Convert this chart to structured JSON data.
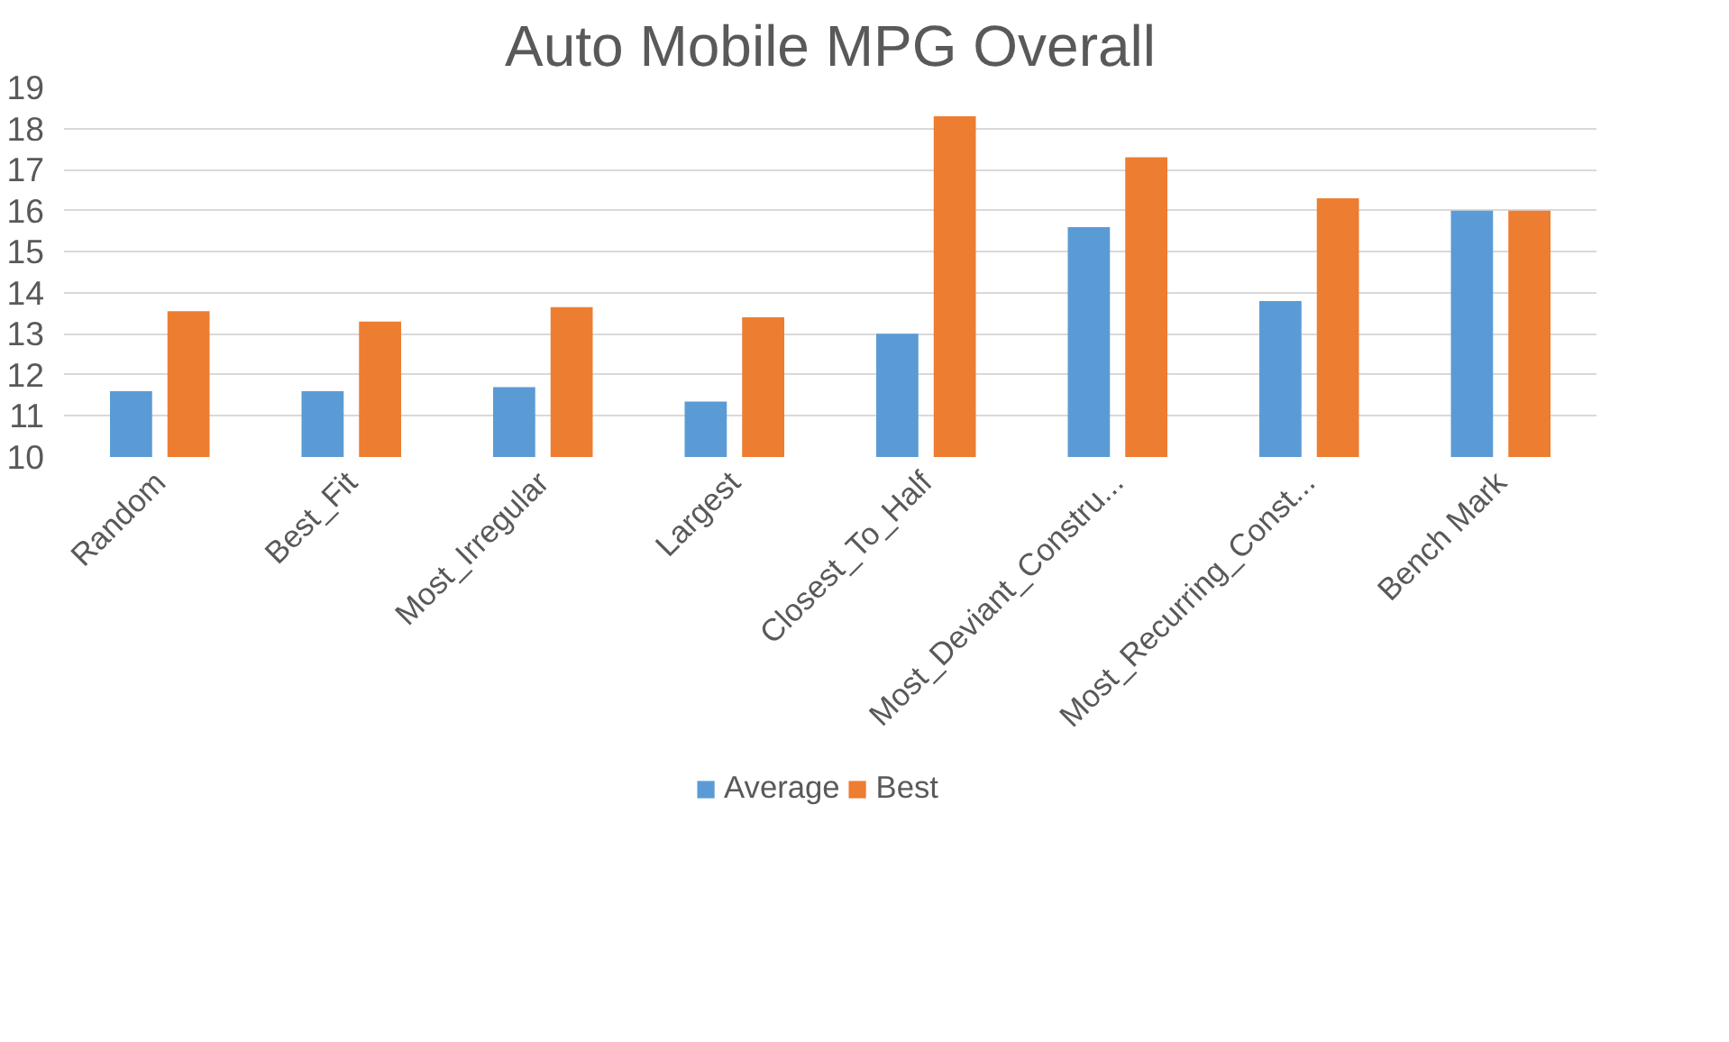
{
  "chart_data": {
    "type": "bar",
    "title": "Auto Mobile MPG Overall",
    "categories": [
      "Random",
      "Best_Fit",
      "Most_Irregular",
      "Largest",
      "Closest_To_Half",
      "Most_Deviant_Constru...",
      "Most_Recurring_Const...",
      "Bench Mark"
    ],
    "series": [
      {
        "name": "Average",
        "color": "#5b9bd5",
        "values": [
          11.6,
          11.6,
          11.7,
          11.35,
          13.0,
          15.6,
          13.8,
          16.0
        ]
      },
      {
        "name": "Best",
        "color": "#ed7d31",
        "values": [
          13.55,
          13.3,
          13.65,
          13.4,
          18.3,
          17.3,
          16.3,
          16.0
        ]
      }
    ],
    "ylim": [
      10,
      19
    ],
    "yticks": [
      10,
      11,
      12,
      13,
      14,
      15,
      16,
      17,
      18,
      19
    ],
    "grid": "y",
    "legend": "bottom"
  }
}
